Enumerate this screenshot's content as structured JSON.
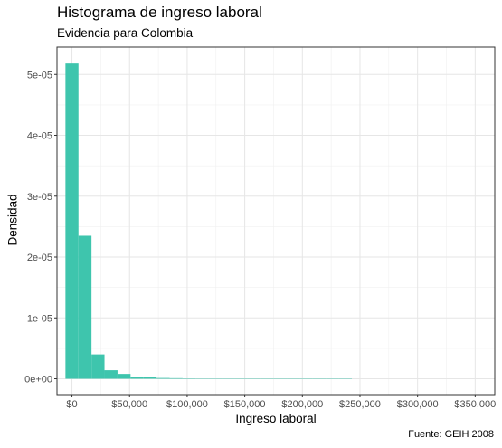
{
  "chart_data": {
    "type": "bar",
    "title": "Histograma de ingreso laboral",
    "subtitle": "Evidencia para Colombia",
    "caption": "Fuente: GEIH 2008",
    "xlabel": "Ingreso laboral",
    "ylabel": "Densidad",
    "xlim": [
      -13000,
      367000
    ],
    "ylim": [
      -2.6e-06,
      5.45e-05
    ],
    "grid": true,
    "x_ticks": [
      0,
      50000,
      100000,
      150000,
      200000,
      250000,
      300000,
      350000
    ],
    "x_tick_labels": [
      "$0",
      "$50,000",
      "$100,000",
      "$150,000",
      "$200,000",
      "$250,000",
      "$300,000",
      "$350,000"
    ],
    "y_ticks": [
      0,
      1e-05,
      2e-05,
      3e-05,
      4e-05,
      5e-05
    ],
    "y_tick_labels": [
      "0e+00",
      "1e-05",
      "2e-05",
      "3e-05",
      "4e-05",
      "5e-05"
    ],
    "bin_width": 11300,
    "bin_start": -5650,
    "densities": [
      5.18e-05,
      2.35e-05,
      4e-06,
      1.4e-06,
      8e-07,
      3.5e-07,
      2.5e-07,
      1.3e-07,
      1e-07,
      7e-08,
      5e-08,
      4e-08,
      3e-08,
      2e-08,
      2e-08,
      1e-08,
      1e-08,
      1e-08,
      1e-08,
      1e-08,
      5e-09,
      5e-09
    ],
    "fill_color": "#3ec5ad"
  }
}
